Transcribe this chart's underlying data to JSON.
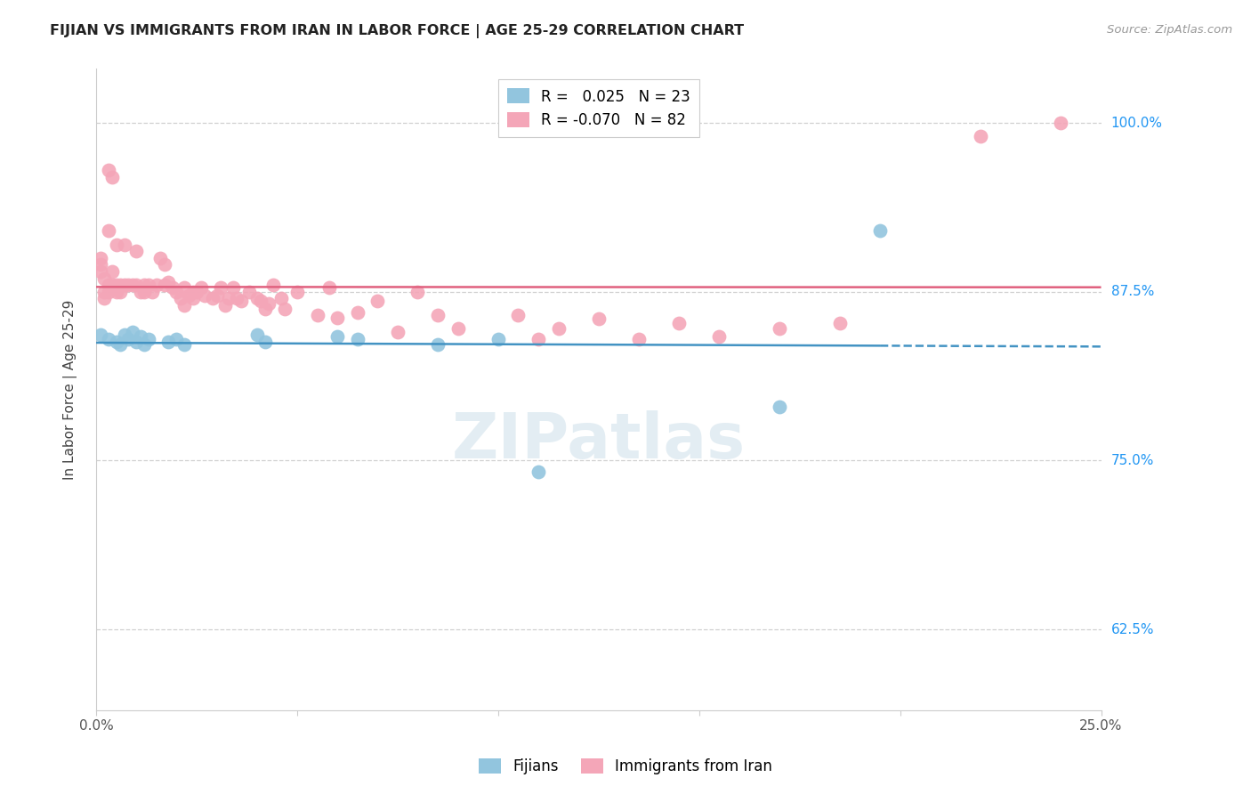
{
  "title": "FIJIAN VS IMMIGRANTS FROM IRAN IN LABOR FORCE | AGE 25-29 CORRELATION CHART",
  "source": "Source: ZipAtlas.com",
  "ylabel": "In Labor Force | Age 25-29",
  "x_min": 0.0,
  "x_max": 0.25,
  "y_min": 0.565,
  "y_max": 1.04,
  "x_ticks": [
    0.0,
    0.05,
    0.1,
    0.15,
    0.2,
    0.25
  ],
  "y_tick_labels": [
    "62.5%",
    "75.0%",
    "87.5%",
    "100.0%"
  ],
  "y_ticks": [
    0.625,
    0.75,
    0.875,
    1.0
  ],
  "fijian_color": "#92c5de",
  "iran_color": "#f4a6b8",
  "fijian_line_color": "#4393c3",
  "iran_line_color": "#e0607e",
  "fijian_R": 0.025,
  "fijian_N": 23,
  "iran_R": -0.07,
  "iran_N": 82,
  "fijian_x": [
    0.001,
    0.003,
    0.005,
    0.006,
    0.007,
    0.008,
    0.009,
    0.01,
    0.011,
    0.012,
    0.013,
    0.018,
    0.02,
    0.022,
    0.04,
    0.042,
    0.06,
    0.065,
    0.085,
    0.1,
    0.11,
    0.17,
    0.195
  ],
  "fijian_y": [
    0.843,
    0.84,
    0.838,
    0.836,
    0.843,
    0.84,
    0.845,
    0.838,
    0.842,
    0.836,
    0.84,
    0.838,
    0.84,
    0.836,
    0.843,
    0.838,
    0.842,
    0.84,
    0.836,
    0.84,
    0.742,
    0.79,
    0.92
  ],
  "iran_x": [
    0.001,
    0.001,
    0.001,
    0.002,
    0.002,
    0.002,
    0.003,
    0.003,
    0.003,
    0.003,
    0.004,
    0.004,
    0.004,
    0.005,
    0.005,
    0.005,
    0.006,
    0.006,
    0.007,
    0.007,
    0.008,
    0.009,
    0.01,
    0.01,
    0.011,
    0.012,
    0.012,
    0.013,
    0.014,
    0.015,
    0.016,
    0.017,
    0.017,
    0.018,
    0.019,
    0.02,
    0.021,
    0.022,
    0.022,
    0.023,
    0.024,
    0.024,
    0.025,
    0.026,
    0.027,
    0.029,
    0.03,
    0.031,
    0.032,
    0.033,
    0.034,
    0.035,
    0.036,
    0.038,
    0.04,
    0.041,
    0.042,
    0.043,
    0.044,
    0.046,
    0.047,
    0.05,
    0.055,
    0.058,
    0.06,
    0.065,
    0.07,
    0.075,
    0.08,
    0.085,
    0.09,
    0.105,
    0.11,
    0.115,
    0.125,
    0.135,
    0.145,
    0.155,
    0.17,
    0.185,
    0.22,
    0.24
  ],
  "iran_y": [
    0.89,
    0.9,
    0.895,
    0.885,
    0.87,
    0.875,
    0.88,
    0.875,
    0.92,
    0.965,
    0.88,
    0.89,
    0.96,
    0.88,
    0.875,
    0.91,
    0.875,
    0.88,
    0.88,
    0.91,
    0.88,
    0.88,
    0.88,
    0.905,
    0.875,
    0.875,
    0.88,
    0.88,
    0.875,
    0.88,
    0.9,
    0.88,
    0.895,
    0.882,
    0.878,
    0.875,
    0.87,
    0.865,
    0.878,
    0.872,
    0.875,
    0.87,
    0.875,
    0.878,
    0.872,
    0.87,
    0.872,
    0.878,
    0.865,
    0.87,
    0.878,
    0.87,
    0.868,
    0.875,
    0.87,
    0.868,
    0.862,
    0.866,
    0.88,
    0.87,
    0.862,
    0.875,
    0.858,
    0.878,
    0.856,
    0.86,
    0.868,
    0.845,
    0.875,
    0.858,
    0.848,
    0.858,
    0.84,
    0.848,
    0.855,
    0.84,
    0.852,
    0.842,
    0.848,
    0.852,
    0.99,
    1.0
  ]
}
